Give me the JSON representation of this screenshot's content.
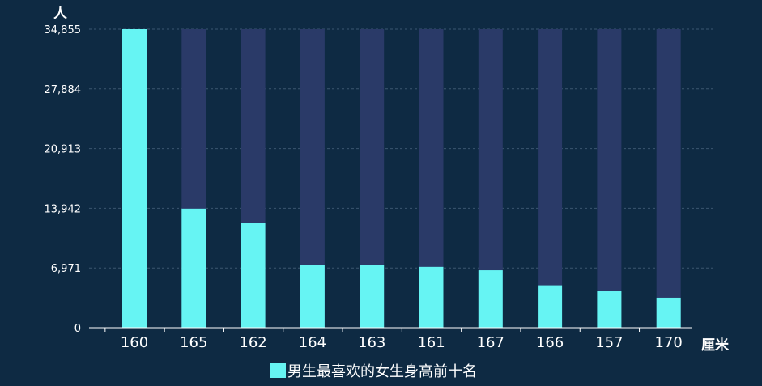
{
  "chart_data": {
    "type": "bar",
    "ylabel": "人",
    "xlabel": "厘米",
    "y_ticks": [
      "0",
      "6,971",
      "13,942",
      "20,913",
      "27,884",
      "34,855"
    ],
    "ylim": [
      0,
      34855
    ],
    "categories": [
      "160",
      "165",
      "162",
      "164",
      "163",
      "161",
      "167",
      "166",
      "157",
      "170"
    ],
    "series": [
      {
        "name": "男生最喜欢的女生身高前十名",
        "values": [
          34855,
          13900,
          12200,
          7300,
          7300,
          7100,
          6700,
          4950,
          4250,
          3500
        ]
      }
    ],
    "background_bar_value": 34855,
    "legend_position": "bottom",
    "grid": true,
    "colors": {
      "background": "#0e2a43",
      "bar": "#66f4f3",
      "bar_shadow": "#2a3a68",
      "grid": "#3b5670",
      "axis": "#ffffff"
    }
  }
}
